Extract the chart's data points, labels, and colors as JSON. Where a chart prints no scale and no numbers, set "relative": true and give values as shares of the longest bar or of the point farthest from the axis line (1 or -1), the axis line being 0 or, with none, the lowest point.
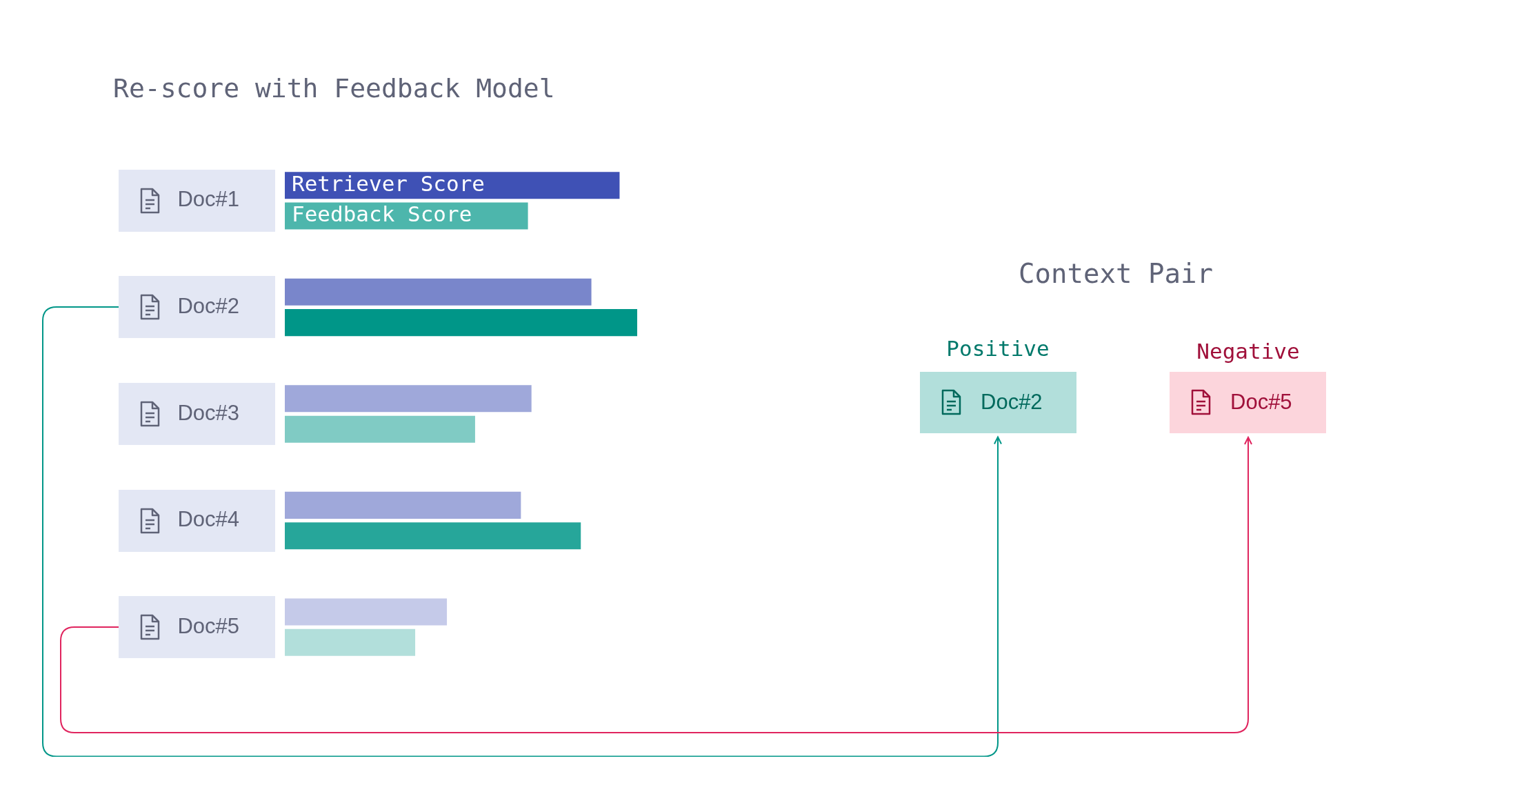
{
  "chart_data": {
    "type": "bar",
    "orientation": "horizontal",
    "relative": true,
    "title": "Re-score with Feedback Model",
    "categories": [
      "Doc#1",
      "Doc#2",
      "Doc#3",
      "Doc#4",
      "Doc#5"
    ],
    "series": [
      {
        "name": "Retriever Score",
        "colors": [
          "#3f51b5",
          "#7986cb",
          "#9fa8da",
          "#9fa8da",
          "#c5cae9"
        ],
        "values": [
          0.95,
          0.87,
          0.7,
          0.67,
          0.46
        ]
      },
      {
        "name": "Feedback Score",
        "colors": [
          "#4db6ac",
          "#009688",
          "#80cbc4",
          "#26a69a",
          "#b2dfdb"
        ],
        "values": [
          0.69,
          1,
          0.54,
          0.84,
          0.37
        ]
      }
    ],
    "annotations": [
      "Context Pair",
      "Positive",
      "Negative",
      "Doc#2",
      "Doc#5"
    ]
  }
}
